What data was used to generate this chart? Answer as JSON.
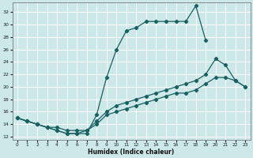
{
  "xlabel": "Humidex (Indice chaleur)",
  "xlim": [
    -0.5,
    23.5
  ],
  "ylim": [
    11.5,
    33.5
  ],
  "yticks": [
    12,
    14,
    16,
    18,
    20,
    22,
    24,
    26,
    28,
    30,
    32
  ],
  "xticks": [
    0,
    1,
    2,
    3,
    4,
    5,
    6,
    7,
    8,
    9,
    10,
    11,
    12,
    13,
    14,
    15,
    16,
    17,
    18,
    19,
    20,
    21,
    22,
    23
  ],
  "background_color": "#cce8e8",
  "grid_color": "#ffffff",
  "line_color": "#1a6060",
  "line1_x": [
    0,
    1,
    2,
    3,
    4,
    5,
    6,
    7,
    8,
    9,
    10,
    11,
    12,
    13,
    14,
    15,
    16,
    17,
    18,
    19,
    20,
    21,
    22,
    23
  ],
  "line1_y": [
    15,
    14.5,
    14,
    13.5,
    13,
    12.5,
    12.5,
    12.5,
    15.5,
    21.5,
    26,
    29,
    29.5,
    30.5,
    30.5,
    30.5,
    30.5,
    30.5,
    33,
    27.5,
    null,
    null,
    null,
    null
  ],
  "line2_x": [
    0,
    1,
    2,
    3,
    4,
    5,
    6,
    7,
    8,
    9,
    10,
    11,
    12,
    13,
    14,
    15,
    16,
    17,
    18,
    19,
    20,
    21,
    22,
    23
  ],
  "line2_y": [
    15,
    14.5,
    14,
    13.5,
    13,
    12.5,
    12.5,
    13,
    14.5,
    16,
    17,
    17.5,
    18,
    18.5,
    19,
    19.5,
    20,
    20.5,
    21,
    22,
    24.5,
    23.5,
    21,
    20
  ],
  "line3_x": [
    0,
    1,
    2,
    3,
    4,
    5,
    6,
    7,
    8,
    9,
    10,
    11,
    12,
    13,
    14,
    15,
    16,
    17,
    18,
    19,
    20,
    21,
    22,
    23
  ],
  "line3_y": [
    15,
    14.5,
    14,
    13.5,
    13.5,
    13,
    13,
    13,
    14,
    15.5,
    16,
    16.5,
    17,
    17.5,
    18,
    18.5,
    19,
    19,
    19.5,
    20.5,
    21.5,
    21.5,
    21,
    20
  ]
}
